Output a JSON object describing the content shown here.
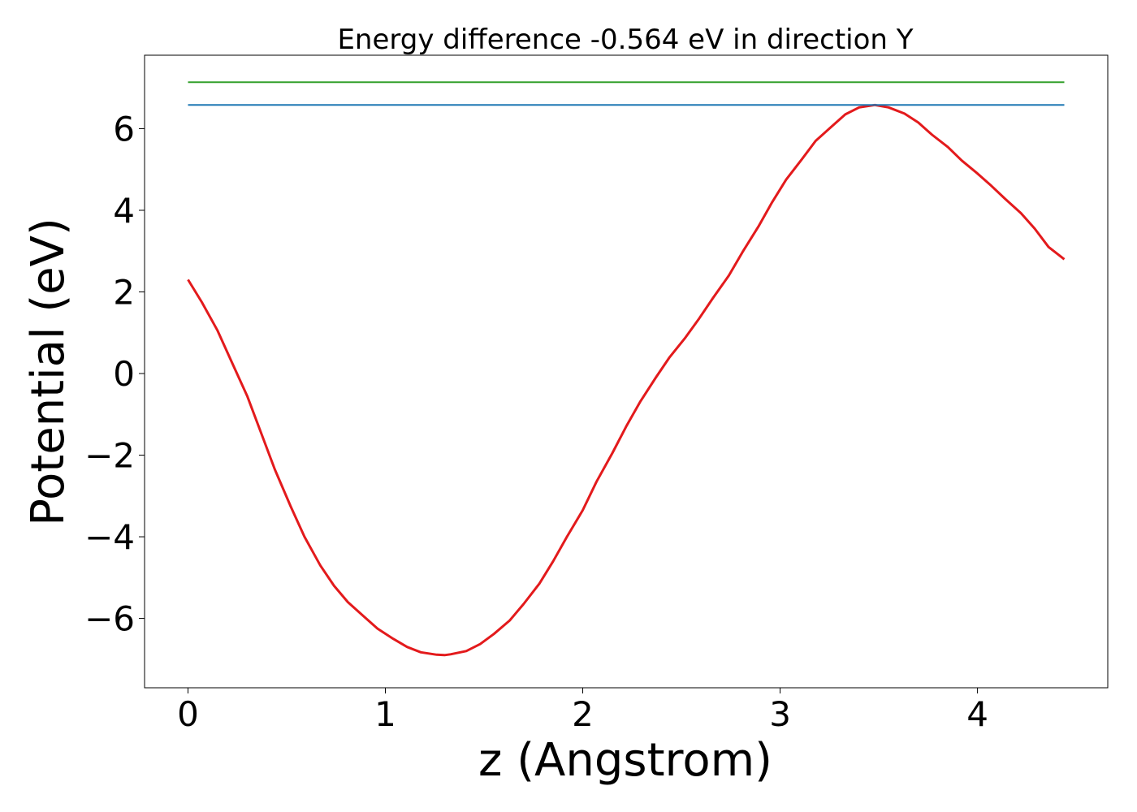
{
  "chart_data": {
    "type": "line",
    "title": "Energy difference -0.564 eV in direction Y",
    "xlabel": "z (Angstrom)",
    "ylabel": "Potential (eV)",
    "xlim": [
      -0.22,
      4.66
    ],
    "ylim": [
      -7.7,
      7.8
    ],
    "xticks": [
      0,
      1,
      2,
      3,
      4
    ],
    "xtick_labels": [
      "0",
      "1",
      "2",
      "3",
      "4"
    ],
    "yticks": [
      -6,
      -4,
      -2,
      0,
      2,
      4,
      6
    ],
    "ytick_labels": [
      "−6",
      "−4",
      "−2",
      "0",
      "2",
      "4",
      "6"
    ],
    "grid": false,
    "series": [
      {
        "color": "#e31a1c",
        "x": [
          0.0,
          0.07,
          0.15,
          0.22,
          0.3,
          0.37,
          0.44,
          0.52,
          0.59,
          0.67,
          0.74,
          0.81,
          0.89,
          0.96,
          1.04,
          1.11,
          1.18,
          1.26,
          1.3,
          1.33,
          1.41,
          1.48,
          1.55,
          1.63,
          1.7,
          1.78,
          1.85,
          1.92,
          2.0,
          2.07,
          2.15,
          2.22,
          2.29,
          2.37,
          2.44,
          2.52,
          2.59,
          2.66,
          2.74,
          2.81,
          2.89,
          2.96,
          3.03,
          3.11,
          3.18,
          3.26,
          3.33,
          3.4,
          3.48,
          3.55,
          3.63,
          3.7,
          3.77,
          3.85,
          3.92,
          4.0,
          4.07,
          4.14,
          4.22,
          4.29,
          4.36,
          4.44
        ],
        "y": [
          2.3,
          1.75,
          1.05,
          0.3,
          -0.55,
          -1.45,
          -2.35,
          -3.25,
          -4.0,
          -4.7,
          -5.2,
          -5.6,
          -5.95,
          -6.25,
          -6.5,
          -6.7,
          -6.83,
          -6.89,
          -6.9,
          -6.88,
          -6.8,
          -6.63,
          -6.38,
          -6.05,
          -5.65,
          -5.15,
          -4.6,
          -4.0,
          -3.35,
          -2.65,
          -1.95,
          -1.3,
          -0.7,
          -0.1,
          0.4,
          0.88,
          1.35,
          1.85,
          2.4,
          2.98,
          3.6,
          4.2,
          4.75,
          5.25,
          5.7,
          6.05,
          6.35,
          6.52,
          6.58,
          6.52,
          6.37,
          6.15,
          5.85,
          5.55,
          5.22,
          4.9,
          4.6,
          4.28,
          3.93,
          3.55,
          3.1,
          2.8
        ]
      },
      {
        "color": "#1f78b4",
        "x": [
          0.0,
          4.44
        ],
        "y": [
          6.58,
          6.58
        ]
      },
      {
        "color": "#33a02c",
        "x": [
          0.0,
          4.44
        ],
        "y": [
          7.14,
          7.14
        ]
      }
    ]
  }
}
